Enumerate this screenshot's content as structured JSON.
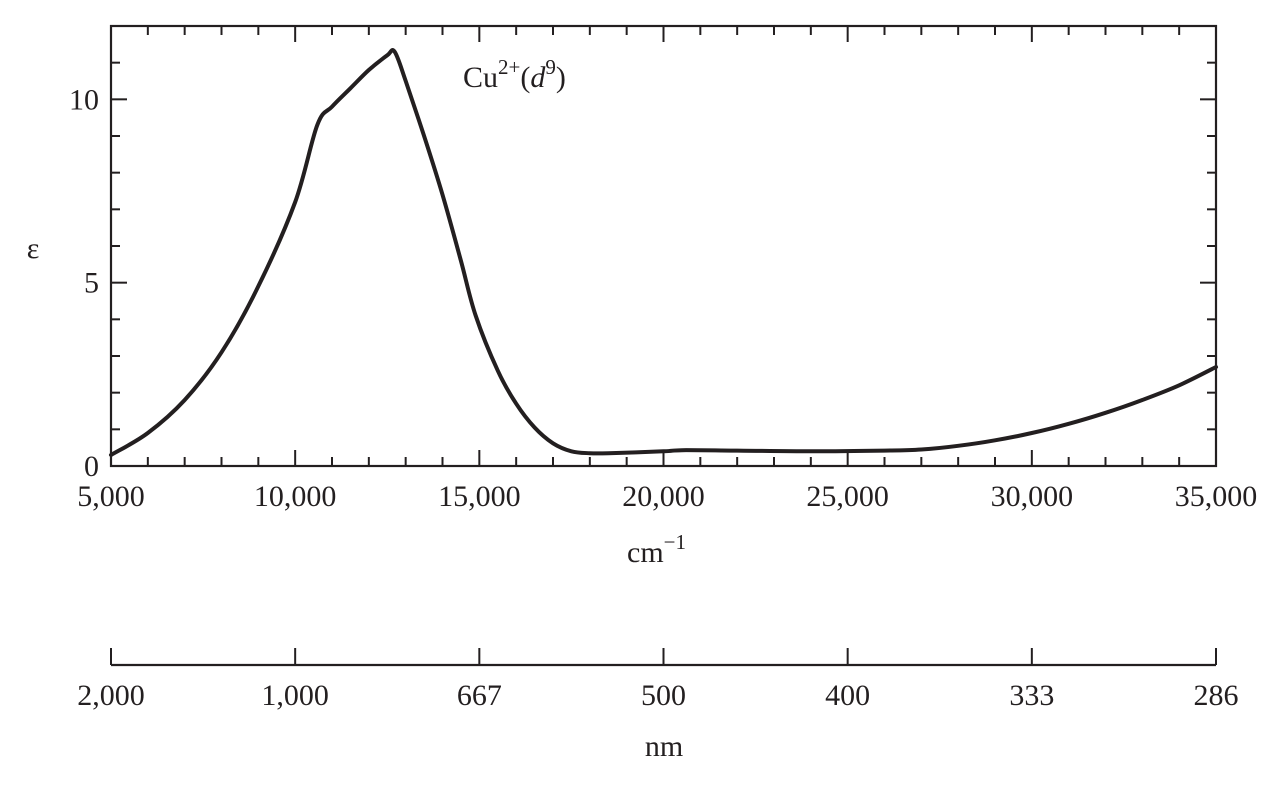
{
  "chart_data": {
    "type": "line",
    "title": "",
    "annotation": {
      "base": "Cu",
      "charge": "2+",
      "open_paren": "(",
      "d": "d",
      "exponent": "9",
      "close_paren": ")"
    },
    "ylabel": "ε",
    "xlabel": {
      "base": "cm",
      "exponent": "−1"
    },
    "secondary_xlabel": "nm",
    "xlim": [
      5000,
      35000
    ],
    "ylim": [
      0,
      12
    ],
    "grid": false,
    "y_ticks": [
      {
        "value": 0,
        "label": "0"
      },
      {
        "value": 5,
        "label": "5"
      },
      {
        "value": 10,
        "label": "10"
      }
    ],
    "x_ticks": [
      {
        "value": 5000,
        "label": "5,000"
      },
      {
        "value": 10000,
        "label": "10,000"
      },
      {
        "value": 15000,
        "label": "15,000"
      },
      {
        "value": 20000,
        "label": "20,000"
      },
      {
        "value": 25000,
        "label": "25,000"
      },
      {
        "value": 30000,
        "label": "30,000"
      },
      {
        "value": 35000,
        "label": "35,000"
      }
    ],
    "secondary_x_ticks": [
      {
        "value": 5000,
        "label": "2,000"
      },
      {
        "value": 10000,
        "label": "1,000"
      },
      {
        "value": 15000,
        "label": "667"
      },
      {
        "value": 20000,
        "label": "500"
      },
      {
        "value": 25000,
        "label": "400"
      },
      {
        "value": 30000,
        "label": "333"
      },
      {
        "value": 35000,
        "label": "286"
      }
    ],
    "series": [
      {
        "x": [
          5000,
          6000,
          7000,
          8000,
          9000,
          10000,
          10600,
          11000,
          11500,
          12000,
          12500,
          12700,
          13000,
          13500,
          14000,
          14500,
          14900,
          15500,
          16000,
          16500,
          17000,
          17500,
          18000,
          18500,
          20000,
          20500,
          22000,
          24000,
          26000,
          27000,
          28000,
          29000,
          30000,
          31000,
          32000,
          33000,
          34000,
          35000
        ],
        "y": [
          0.3,
          0.9,
          1.8,
          3.1,
          4.9,
          7.2,
          9.3,
          9.8,
          10.3,
          10.8,
          11.2,
          11.3,
          10.5,
          9.0,
          7.4,
          5.6,
          4.1,
          2.6,
          1.7,
          1.05,
          0.62,
          0.4,
          0.35,
          0.35,
          0.4,
          0.43,
          0.42,
          0.4,
          0.42,
          0.45,
          0.55,
          0.7,
          0.9,
          1.15,
          1.45,
          1.8,
          2.2,
          2.7
        ]
      }
    ]
  }
}
